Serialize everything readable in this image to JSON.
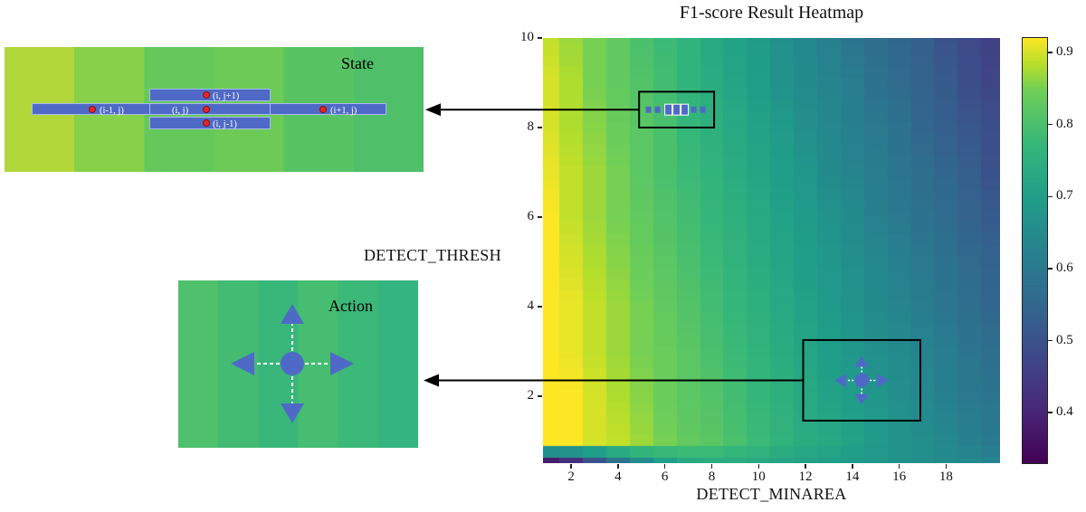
{
  "figure": {
    "title": "F1-score Result Heatmap",
    "x_axis_label": "DETECT_MINAREA",
    "y_axis_label": "DETECT_THRESH"
  },
  "insets": {
    "accent_blue": "#4e6ac6",
    "dot_red": "#e52528",
    "state": {
      "label": "State",
      "bg_bands": [
        "#b2d73b",
        "#86d04a",
        "#64c85b",
        "#6cca56",
        "#58c363",
        "#4fbf69"
      ],
      "cells": [
        {
          "id": "left",
          "label": "(i-1, j)"
        },
        {
          "id": "center",
          "label": "(i, j)"
        },
        {
          "id": "right",
          "label": "(i+1, j)"
        },
        {
          "id": "up",
          "label": "(i, j+1)"
        },
        {
          "id": "down",
          "label": "(i, j-1)"
        }
      ]
    },
    "action": {
      "label": "Action",
      "bg_bands": [
        "#4fc06c",
        "#43bb73",
        "#39b77a",
        "#46bd70",
        "#3cb878",
        "#34b47e"
      ]
    }
  },
  "chart_data": {
    "type": "heatmap",
    "title": "F1-score Result Heatmap",
    "xlabel": "DETECT_MINAREA",
    "ylabel": "DETECT_THRESH",
    "x_range": [
      0.8,
      20.3
    ],
    "y_range": [
      0.5,
      10
    ],
    "x_ticks": [
      2,
      4,
      6,
      8,
      10,
      12,
      14,
      16,
      18
    ],
    "y_ticks": [
      10,
      8,
      6,
      4,
      2
    ],
    "colormap": "viridis",
    "color_scale": {
      "vmin": 0.33,
      "vmax": 0.92,
      "ticks": [
        0.9,
        0.8,
        0.7,
        0.6,
        0.5,
        0.4
      ]
    },
    "grid": {
      "x_values": [
        1,
        2,
        3,
        4,
        5,
        6,
        7,
        8,
        9,
        10,
        11,
        12,
        13,
        14,
        15,
        16,
        17,
        18,
        19,
        20
      ],
      "y_values": [
        0.5,
        1,
        2,
        3,
        4,
        5,
        6,
        7,
        8,
        9,
        10
      ],
      "f1_values": [
        [
          0.38,
          0.42,
          0.5,
          0.58,
          0.65,
          0.7,
          0.73,
          0.74,
          0.74,
          0.73,
          0.72,
          0.71,
          0.7,
          0.69,
          0.68,
          0.67,
          0.66,
          0.65,
          0.64,
          0.63
        ],
        [
          0.94,
          0.92,
          0.9,
          0.89,
          0.87,
          0.85,
          0.83,
          0.82,
          0.8,
          0.78,
          0.76,
          0.74,
          0.73,
          0.71,
          0.69,
          0.67,
          0.66,
          0.64,
          0.62,
          0.6
        ],
        [
          0.94,
          0.92,
          0.9,
          0.88,
          0.86,
          0.84,
          0.82,
          0.81,
          0.79,
          0.77,
          0.75,
          0.73,
          0.71,
          0.7,
          0.68,
          0.66,
          0.64,
          0.62,
          0.6,
          0.59
        ],
        [
          0.93,
          0.91,
          0.89,
          0.87,
          0.85,
          0.84,
          0.82,
          0.8,
          0.78,
          0.76,
          0.74,
          0.72,
          0.7,
          0.68,
          0.66,
          0.65,
          0.63,
          0.61,
          0.59,
          0.57
        ],
        [
          0.93,
          0.91,
          0.89,
          0.87,
          0.85,
          0.83,
          0.81,
          0.79,
          0.77,
          0.75,
          0.73,
          0.71,
          0.69,
          0.67,
          0.65,
          0.63,
          0.61,
          0.59,
          0.57,
          0.55
        ],
        [
          0.92,
          0.9,
          0.88,
          0.86,
          0.84,
          0.82,
          0.8,
          0.78,
          0.76,
          0.74,
          0.72,
          0.7,
          0.68,
          0.66,
          0.64,
          0.62,
          0.6,
          0.58,
          0.56,
          0.54
        ],
        [
          0.92,
          0.89,
          0.87,
          0.85,
          0.83,
          0.81,
          0.79,
          0.77,
          0.75,
          0.73,
          0.71,
          0.69,
          0.67,
          0.65,
          0.62,
          0.6,
          0.58,
          0.56,
          0.54,
          0.52
        ],
        [
          0.91,
          0.89,
          0.87,
          0.85,
          0.82,
          0.8,
          0.78,
          0.76,
          0.74,
          0.72,
          0.7,
          0.68,
          0.65,
          0.63,
          0.61,
          0.59,
          0.57,
          0.55,
          0.53,
          0.5
        ],
        [
          0.9,
          0.88,
          0.86,
          0.84,
          0.82,
          0.8,
          0.77,
          0.75,
          0.73,
          0.71,
          0.69,
          0.66,
          0.64,
          0.62,
          0.6,
          0.58,
          0.55,
          0.53,
          0.51,
          0.49
        ],
        [
          0.9,
          0.88,
          0.85,
          0.83,
          0.81,
          0.79,
          0.76,
          0.74,
          0.72,
          0.7,
          0.67,
          0.65,
          0.63,
          0.61,
          0.58,
          0.56,
          0.54,
          0.52,
          0.49,
          0.47
        ],
        [
          0.89,
          0.87,
          0.85,
          0.83,
          0.8,
          0.78,
          0.76,
          0.73,
          0.71,
          0.69,
          0.66,
          0.64,
          0.62,
          0.59,
          0.57,
          0.55,
          0.53,
          0.5,
          0.48,
          0.46
        ]
      ]
    },
    "annotations": [
      {
        "name": "state-region",
        "x_range": [
          4.9,
          8.1
        ],
        "y_range": [
          8.0,
          8.8
        ],
        "links_to": "state-inset"
      },
      {
        "name": "action-region",
        "x_range": [
          11.9,
          16.9
        ],
        "y_range": [
          1.45,
          3.25
        ],
        "links_to": "action-inset"
      }
    ]
  }
}
